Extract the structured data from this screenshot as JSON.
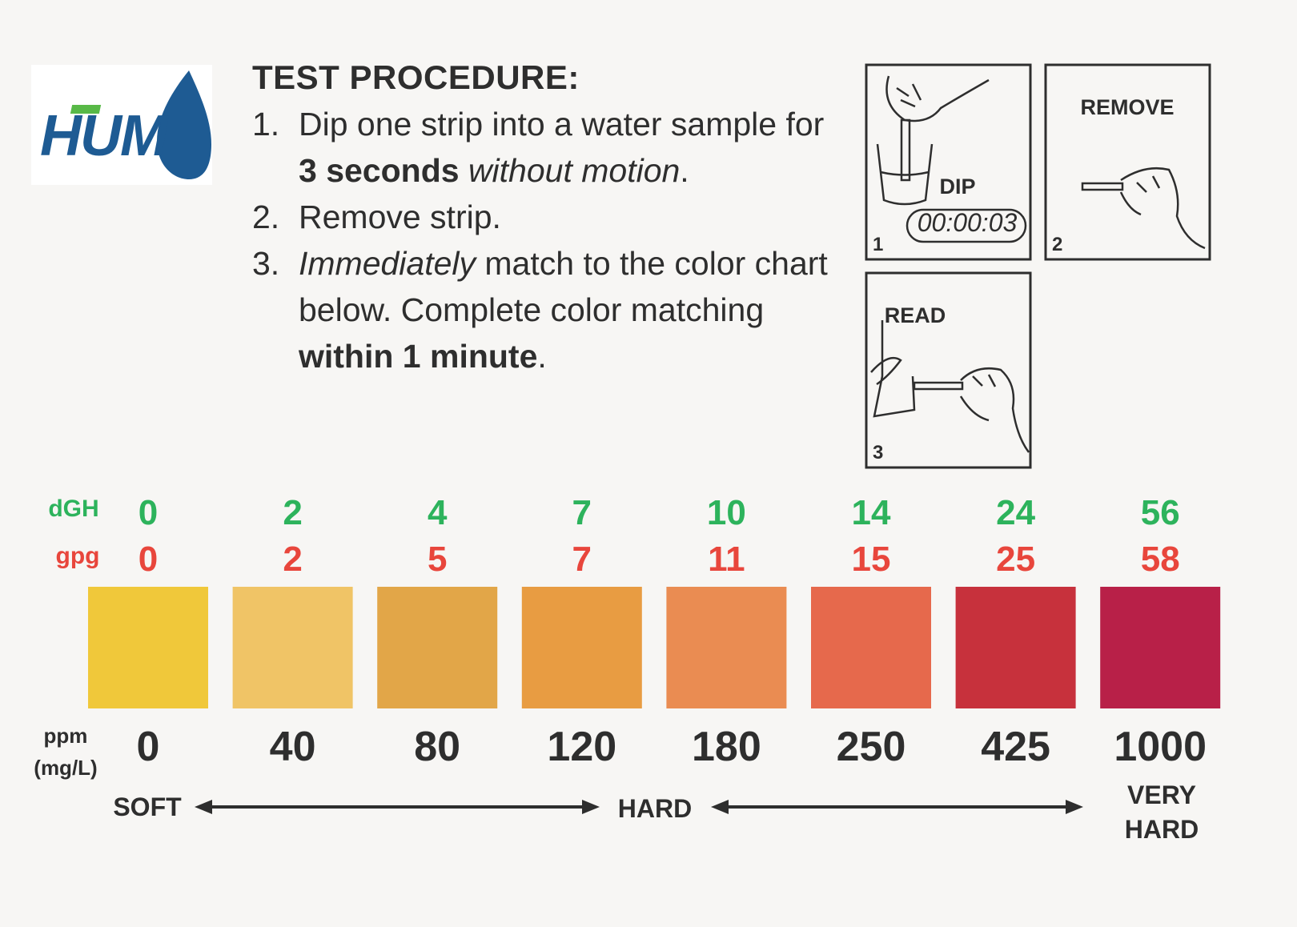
{
  "logo": {
    "text": "HUM"
  },
  "procedure": {
    "title": "TEST PROCEDURE:",
    "steps": [
      {
        "number": "1.",
        "parts": [
          {
            "text": "Dip one strip into a water sample for ",
            "style": "normal"
          },
          {
            "text": "3 seconds",
            "style": "bold"
          },
          {
            "text": " without motion",
            "style": "italic"
          },
          {
            "text": ".",
            "style": "normal"
          }
        ]
      },
      {
        "number": "2.",
        "parts": [
          {
            "text": "Remove strip.",
            "style": "normal"
          }
        ]
      },
      {
        "number": "3.",
        "parts": [
          {
            "text": "Immediately",
            "style": "italic"
          },
          {
            "text": " match to the color chart below. Complete color matching ",
            "style": "normal"
          },
          {
            "text": "within 1 minute",
            "style": "bold"
          },
          {
            "text": ".",
            "style": "normal"
          }
        ]
      }
    ]
  },
  "panels": [
    {
      "number": "1",
      "label": "DIP",
      "timer": "00:00:03"
    },
    {
      "number": "2",
      "label": "REMOVE"
    },
    {
      "number": "3",
      "label": "READ"
    }
  ],
  "chart": {
    "dgh_label": "dGH",
    "gpg_label": "gpg",
    "ppm_label": [
      "ppm",
      "(mg/L)"
    ],
    "dgh": [
      0,
      2,
      4,
      7,
      10,
      14,
      24,
      56
    ],
    "gpg": [
      0,
      2,
      5,
      7,
      11,
      15,
      25,
      58
    ],
    "ppm": [
      0,
      40,
      80,
      120,
      180,
      250,
      425,
      1000
    ],
    "colors": [
      "#f0c83a",
      "#f0c466",
      "#e2a648",
      "#e89c42",
      "#ea8c52",
      "#e6694c",
      "#c7313c",
      "#b82048"
    ],
    "scale": {
      "soft": "SOFT",
      "hard": "HARD",
      "very_hard": [
        "VERY",
        "HARD"
      ]
    }
  }
}
